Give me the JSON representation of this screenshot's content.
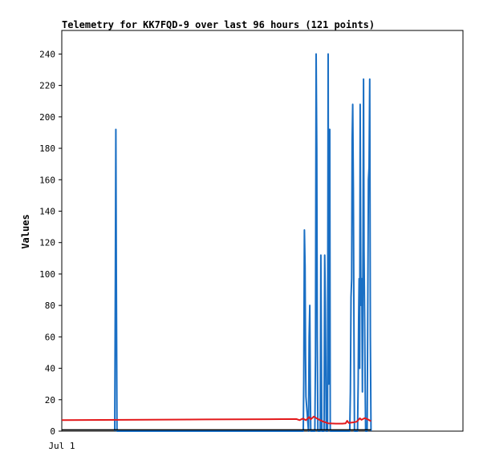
{
  "chart_data": {
    "type": "line",
    "title": "Telemetry for KK7FQD-9 over last 96 hours (121 points)",
    "ylabel": "Values",
    "xlabel": "",
    "x_tick_labels": [
      "Jul 1"
    ],
    "ylim": [
      0,
      255
    ],
    "y_ticks": [
      0,
      20,
      40,
      60,
      80,
      100,
      120,
      140,
      160,
      180,
      200,
      220,
      240
    ],
    "grid": false,
    "legend": "none",
    "series": [
      {
        "color": "#1a6fc4",
        "points": [
          [
            33.4,
            0
          ],
          [
            33.8,
            97
          ],
          [
            34.1,
            192
          ],
          [
            34.4,
            97
          ],
          [
            34.8,
            0
          ],
          [
            152.3,
            0
          ],
          [
            152.6,
            32
          ],
          [
            153.0,
            128
          ],
          [
            153.4,
            105
          ],
          [
            153.7,
            48
          ],
          [
            154.0,
            22
          ],
          [
            155.6,
            0
          ],
          [
            156.0,
            60
          ],
          [
            156.4,
            80
          ],
          [
            156.7,
            30
          ],
          [
            157.0,
            0
          ],
          [
            159.6,
            0
          ],
          [
            160.0,
            48
          ],
          [
            160.4,
            240
          ],
          [
            160.8,
            180
          ],
          [
            161.1,
            60
          ],
          [
            161.5,
            0
          ],
          [
            163.0,
            0
          ],
          [
            163.4,
            112
          ],
          [
            163.7,
            56
          ],
          [
            164.0,
            0
          ],
          [
            165.4,
            0
          ],
          [
            165.8,
            112
          ],
          [
            166.2,
            80
          ],
          [
            166.5,
            40
          ],
          [
            166.8,
            0
          ],
          [
            167.6,
            0
          ],
          [
            168.0,
            240
          ],
          [
            168.3,
            30
          ],
          [
            168.6,
            192
          ],
          [
            169.0,
            192
          ],
          [
            169.3,
            0
          ],
          [
            181.6,
            0
          ],
          [
            182.0,
            25
          ],
          [
            182.4,
            85
          ],
          [
            182.8,
            97
          ],
          [
            183.1,
            185
          ],
          [
            183.5,
            208
          ],
          [
            183.9,
            155
          ],
          [
            184.3,
            60
          ],
          [
            184.6,
            0
          ],
          [
            186.5,
            0
          ],
          [
            186.9,
            30
          ],
          [
            187.2,
            72
          ],
          [
            187.5,
            97
          ],
          [
            187.9,
            40
          ],
          [
            188.2,
            208
          ],
          [
            188.6,
            97
          ],
          [
            188.9,
            80
          ],
          [
            189.2,
            97
          ],
          [
            189.6,
            25
          ],
          [
            190.0,
            128
          ],
          [
            190.3,
            224
          ],
          [
            190.6,
            115
          ],
          [
            191.0,
            70
          ],
          [
            191.3,
            30
          ],
          [
            191.6,
            0
          ],
          [
            192.6,
            0
          ],
          [
            193.0,
            80
          ],
          [
            193.4,
            160
          ],
          [
            193.8,
            168
          ],
          [
            194.2,
            224
          ],
          [
            194.6,
            60
          ],
          [
            195.0,
            0
          ]
        ]
      },
      {
        "color": "#e31a1c",
        "points": [
          [
            0,
            7.0
          ],
          [
            40,
            7.2
          ],
          [
            80,
            7.4
          ],
          [
            110,
            7.5
          ],
          [
            130,
            7.6
          ],
          [
            148,
            7.7
          ],
          [
            150,
            7.0
          ],
          [
            152,
            8.0
          ],
          [
            154,
            7.0
          ],
          [
            156,
            9.0
          ],
          [
            157,
            7.5
          ],
          [
            159,
            9.3
          ],
          [
            161,
            8.0
          ],
          [
            163,
            7.0
          ],
          [
            165,
            6.0
          ],
          [
            168,
            5.0
          ],
          [
            173,
            4.8
          ],
          [
            177,
            4.8
          ],
          [
            179,
            5.0
          ],
          [
            180,
            6.6
          ],
          [
            181,
            5.2
          ],
          [
            184,
            5.6
          ],
          [
            186,
            6.0
          ],
          [
            188,
            8.2
          ],
          [
            189,
            7.2
          ],
          [
            191,
            8.3
          ],
          [
            193,
            7.5
          ],
          [
            195,
            6.3
          ]
        ]
      },
      {
        "color": "#000000",
        "points": [
          [
            0,
            0.8
          ],
          [
            195,
            0.8
          ]
        ]
      }
    ]
  }
}
